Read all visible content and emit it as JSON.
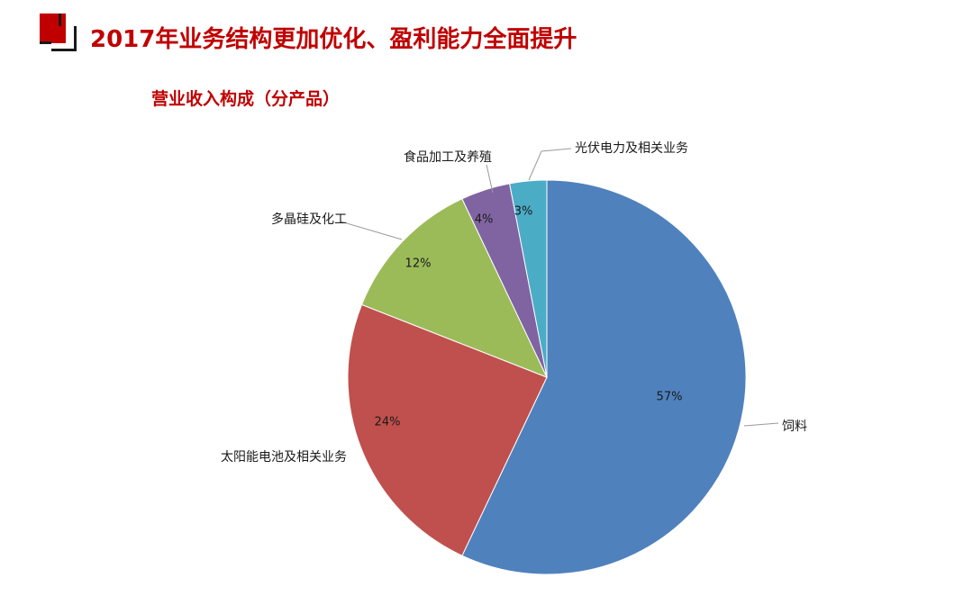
{
  "header": {
    "title": "2017年业务结构更加优化、盈利能力全面提升"
  },
  "chart_data": {
    "type": "pie",
    "title": "营业收入构成（分产品）",
    "slices": [
      {
        "label": "饲料",
        "value": 57,
        "display": "57%",
        "color": "#4f81bd"
      },
      {
        "label": "太阳能电池及相关业务",
        "value": 24,
        "display": "24%",
        "color": "#c0504d"
      },
      {
        "label": "多晶硅及化工",
        "value": 12,
        "display": "12%",
        "color": "#9bbb59"
      },
      {
        "label": "食品加工及养殖",
        "value": 4,
        "display": "4%",
        "color": "#8064a2"
      },
      {
        "label": "光伏电力及相关业务",
        "value": 3,
        "display": "3%",
        "color": "#4bacc6"
      }
    ],
    "start": "12 o'clock",
    "direction": "clockwise",
    "legend": "none (category labels with leader lines)"
  }
}
